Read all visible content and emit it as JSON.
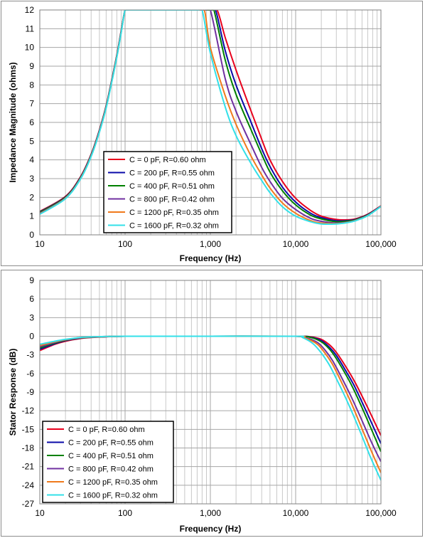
{
  "chart_data": [
    {
      "type": "line",
      "xlabel": "Frequency (Hz)",
      "ylabel": "Impedance Magnitude (ohms)",
      "xscale": "log",
      "xlim": [
        10,
        100000
      ],
      "ylim": [
        0,
        12
      ],
      "xticks": [
        10,
        100,
        1000,
        10000,
        100000
      ],
      "xtick_labels": [
        "10",
        "100",
        "1,000",
        "10,000",
        "100,000"
      ],
      "yticks": [
        0,
        1,
        2,
        3,
        4,
        5,
        6,
        7,
        8,
        9,
        10,
        11,
        12
      ],
      "ytick_labels": [
        "0",
        "1",
        "2",
        "3",
        "4",
        "5",
        "6",
        "7",
        "8",
        "9",
        "10",
        "11",
        "12"
      ],
      "grid": true,
      "legend_position": "lower-left",
      "series": [
        {
          "name": "C = 0 pF, R=0.60 ohm",
          "color": "#e8001c",
          "x": [
            10,
            20,
            30,
            40,
            50,
            60,
            70,
            80,
            90,
            100,
            110,
            120,
            1000,
            1200,
            1500,
            2000,
            3000,
            4000,
            5000,
            7000,
            10000,
            15000,
            20000,
            30000,
            40000,
            50000,
            70000,
            100000
          ],
          "y": [
            1.25,
            2.05,
            3.1,
            4.3,
            5.6,
            6.9,
            8.3,
            9.6,
            10.9,
            12,
            12,
            12,
            12,
            12,
            10.5,
            8.8,
            6.6,
            5.1,
            4.0,
            2.85,
            1.95,
            1.3,
            1.0,
            0.82,
            0.8,
            0.85,
            1.1,
            1.55
          ]
        },
        {
          "name": "C = 200 pF, R=0.55 ohm",
          "color": "#0a0aa8",
          "x": [
            10,
            20,
            30,
            40,
            50,
            60,
            70,
            80,
            90,
            100,
            110,
            120,
            1000,
            1150,
            1500,
            2000,
            3000,
            4000,
            5000,
            7000,
            10000,
            15000,
            20000,
            30000,
            40000,
            50000,
            70000,
            100000
          ],
          "y": [
            1.22,
            2.02,
            3.07,
            4.27,
            5.57,
            6.87,
            8.27,
            9.57,
            10.87,
            12,
            12,
            12,
            12,
            12,
            9.8,
            8.0,
            6.0,
            4.6,
            3.65,
            2.55,
            1.75,
            1.15,
            0.92,
            0.75,
            0.76,
            0.82,
            1.08,
            1.53
          ]
        },
        {
          "name": "C = 400 pF, R=0.51 ohm",
          "color": "#008000",
          "x": [
            10,
            20,
            30,
            40,
            50,
            60,
            70,
            80,
            90,
            100,
            110,
            120,
            1000,
            1100,
            1500,
            2000,
            3000,
            4000,
            5000,
            7000,
            10000,
            15000,
            20000,
            30000,
            40000,
            50000,
            70000,
            100000
          ],
          "y": [
            1.2,
            2.0,
            3.05,
            4.25,
            5.55,
            6.85,
            8.25,
            9.55,
            10.85,
            12,
            12,
            12,
            12,
            12,
            9.3,
            7.5,
            5.6,
            4.3,
            3.35,
            2.35,
            1.6,
            1.05,
            0.85,
            0.7,
            0.73,
            0.8,
            1.06,
            1.52
          ]
        },
        {
          "name": "C = 800 pF, R=0.42 ohm",
          "color": "#7030a0",
          "x": [
            10,
            20,
            30,
            40,
            50,
            60,
            70,
            80,
            90,
            100,
            110,
            120,
            850,
            1000,
            1500,
            2000,
            3000,
            4000,
            5000,
            7000,
            10000,
            15000,
            20000,
            30000,
            40000,
            50000,
            70000,
            100000
          ],
          "y": [
            1.15,
            1.97,
            3.02,
            4.22,
            5.52,
            6.82,
            8.22,
            9.52,
            10.82,
            12,
            12,
            12,
            12,
            12,
            8.3,
            6.6,
            4.8,
            3.6,
            2.85,
            1.95,
            1.35,
            0.88,
            0.72,
            0.63,
            0.68,
            0.77,
            1.04,
            1.52
          ]
        },
        {
          "name": "C = 1200 pF, R=0.35 ohm",
          "color": "#f07a1c",
          "x": [
            10,
            20,
            30,
            40,
            50,
            60,
            70,
            80,
            90,
            100,
            110,
            120,
            700,
            850,
            1000,
            1500,
            2000,
            3000,
            4000,
            5000,
            7000,
            10000,
            15000,
            20000,
            30000,
            40000,
            50000,
            70000,
            100000
          ],
          "y": [
            1.12,
            1.95,
            3.0,
            4.2,
            5.5,
            6.8,
            8.2,
            9.5,
            10.8,
            12,
            12,
            12,
            12,
            12,
            10.0,
            7.4,
            5.9,
            4.2,
            3.2,
            2.5,
            1.7,
            1.15,
            0.76,
            0.63,
            0.6,
            0.66,
            0.76,
            1.03,
            1.52
          ]
        },
        {
          "name": "C = 1600 pF, R=0.32 ohm",
          "color": "#33e0e8",
          "x": [
            10,
            20,
            30,
            40,
            50,
            60,
            70,
            80,
            90,
            100,
            110,
            120,
            700,
            800,
            1000,
            1500,
            2000,
            3000,
            4000,
            5000,
            7000,
            10000,
            15000,
            20000,
            30000,
            40000,
            50000,
            70000,
            100000
          ],
          "y": [
            1.1,
            1.93,
            2.98,
            4.18,
            5.48,
            6.78,
            8.18,
            9.48,
            10.78,
            12,
            12,
            12,
            12,
            12,
            9.7,
            6.8,
            5.3,
            3.8,
            2.9,
            2.25,
            1.5,
            1.0,
            0.7,
            0.58,
            0.58,
            0.65,
            0.75,
            1.02,
            1.52
          ]
        }
      ]
    },
    {
      "type": "line",
      "xlabel": "Frequency (Hz)",
      "ylabel": "Stator Response (dB)",
      "xscale": "log",
      "xlim": [
        10,
        100000
      ],
      "ylim": [
        -27,
        9
      ],
      "xticks": [
        10,
        100,
        1000,
        10000,
        100000
      ],
      "xtick_labels": [
        "10",
        "100",
        "1,000",
        "10,000",
        "100,000"
      ],
      "yticks": [
        -27,
        -24,
        -21,
        -18,
        -15,
        -12,
        -9,
        -6,
        -3,
        0,
        3,
        6,
        9
      ],
      "ytick_labels": [
        "-27",
        "-24",
        "-21",
        "-18",
        "-15",
        "-12",
        "-9",
        "-6",
        "-3",
        "0",
        "3",
        "6",
        "9"
      ],
      "grid": true,
      "legend_position": "lower-left",
      "series": [
        {
          "name": "C = 0 pF, R=0.60 ohm",
          "color": "#e8001c",
          "x": [
            10,
            15,
            20,
            30,
            40,
            60,
            100,
            1000,
            10000,
            15000,
            20000,
            25000,
            30000,
            40000,
            50000,
            70000,
            100000
          ],
          "y": [
            -2.3,
            -1.3,
            -0.8,
            -0.35,
            -0.2,
            -0.08,
            0,
            0,
            0,
            -0.1,
            -0.5,
            -1.4,
            -2.6,
            -5.2,
            -7.5,
            -11.5,
            -16.0
          ]
        },
        {
          "name": "C = 200 pF, R=0.55 ohm",
          "color": "#0a0aa8",
          "x": [
            10,
            15,
            20,
            30,
            40,
            60,
            100,
            1000,
            10000,
            15000,
            20000,
            25000,
            30000,
            40000,
            50000,
            70000,
            100000
          ],
          "y": [
            -2.1,
            -1.2,
            -0.7,
            -0.3,
            -0.17,
            -0.07,
            0,
            0,
            0,
            -0.15,
            -0.7,
            -1.8,
            -3.1,
            -5.9,
            -8.3,
            -12.6,
            -17.3
          ]
        },
        {
          "name": "C = 400 pF, R=0.51 ohm",
          "color": "#008000",
          "x": [
            10,
            15,
            20,
            30,
            40,
            60,
            100,
            1000,
            10000,
            15000,
            20000,
            25000,
            30000,
            40000,
            50000,
            70000,
            100000
          ],
          "y": [
            -1.9,
            -1.1,
            -0.65,
            -0.28,
            -0.15,
            -0.06,
            0,
            0,
            0,
            -0.2,
            -0.9,
            -2.1,
            -3.6,
            -6.5,
            -9.1,
            -13.6,
            -18.6
          ]
        },
        {
          "name": "C = 800 pF, R=0.42 ohm",
          "color": "#7030a0",
          "x": [
            10,
            15,
            20,
            30,
            40,
            60,
            100,
            1000,
            10000,
            13000,
            18000,
            22000,
            27000,
            35000,
            45000,
            60000,
            80000,
            100000
          ],
          "y": [
            -1.7,
            -1.0,
            -0.6,
            -0.25,
            -0.13,
            -0.05,
            0,
            0,
            0,
            -0.2,
            -1.0,
            -2.2,
            -3.9,
            -6.8,
            -9.8,
            -13.6,
            -17.5,
            -20.2
          ]
        },
        {
          "name": "C = 1200 pF, R=0.35 ohm",
          "color": "#f07a1c",
          "x": [
            10,
            15,
            20,
            30,
            40,
            60,
            100,
            1000,
            10000,
            13000,
            18000,
            22000,
            27000,
            35000,
            45000,
            60000,
            80000,
            100000
          ],
          "y": [
            -1.5,
            -0.9,
            -0.55,
            -0.22,
            -0.12,
            -0.05,
            0,
            0,
            0,
            -0.3,
            -1.3,
            -2.7,
            -4.5,
            -7.6,
            -10.8,
            -14.9,
            -19.0,
            -22.0
          ]
        },
        {
          "name": "C = 1600 pF, R=0.32 ohm",
          "color": "#33e0e8",
          "x": [
            10,
            15,
            20,
            30,
            40,
            60,
            100,
            1000,
            10000,
            12000,
            16000,
            20000,
            25000,
            32000,
            40000,
            55000,
            75000,
            100000
          ],
          "y": [
            -1.3,
            -0.8,
            -0.5,
            -0.2,
            -0.1,
            -0.04,
            0,
            0,
            0,
            -0.2,
            -1.2,
            -2.7,
            -4.7,
            -7.6,
            -10.4,
            -14.8,
            -19.4,
            -23.2
          ]
        }
      ]
    }
  ]
}
